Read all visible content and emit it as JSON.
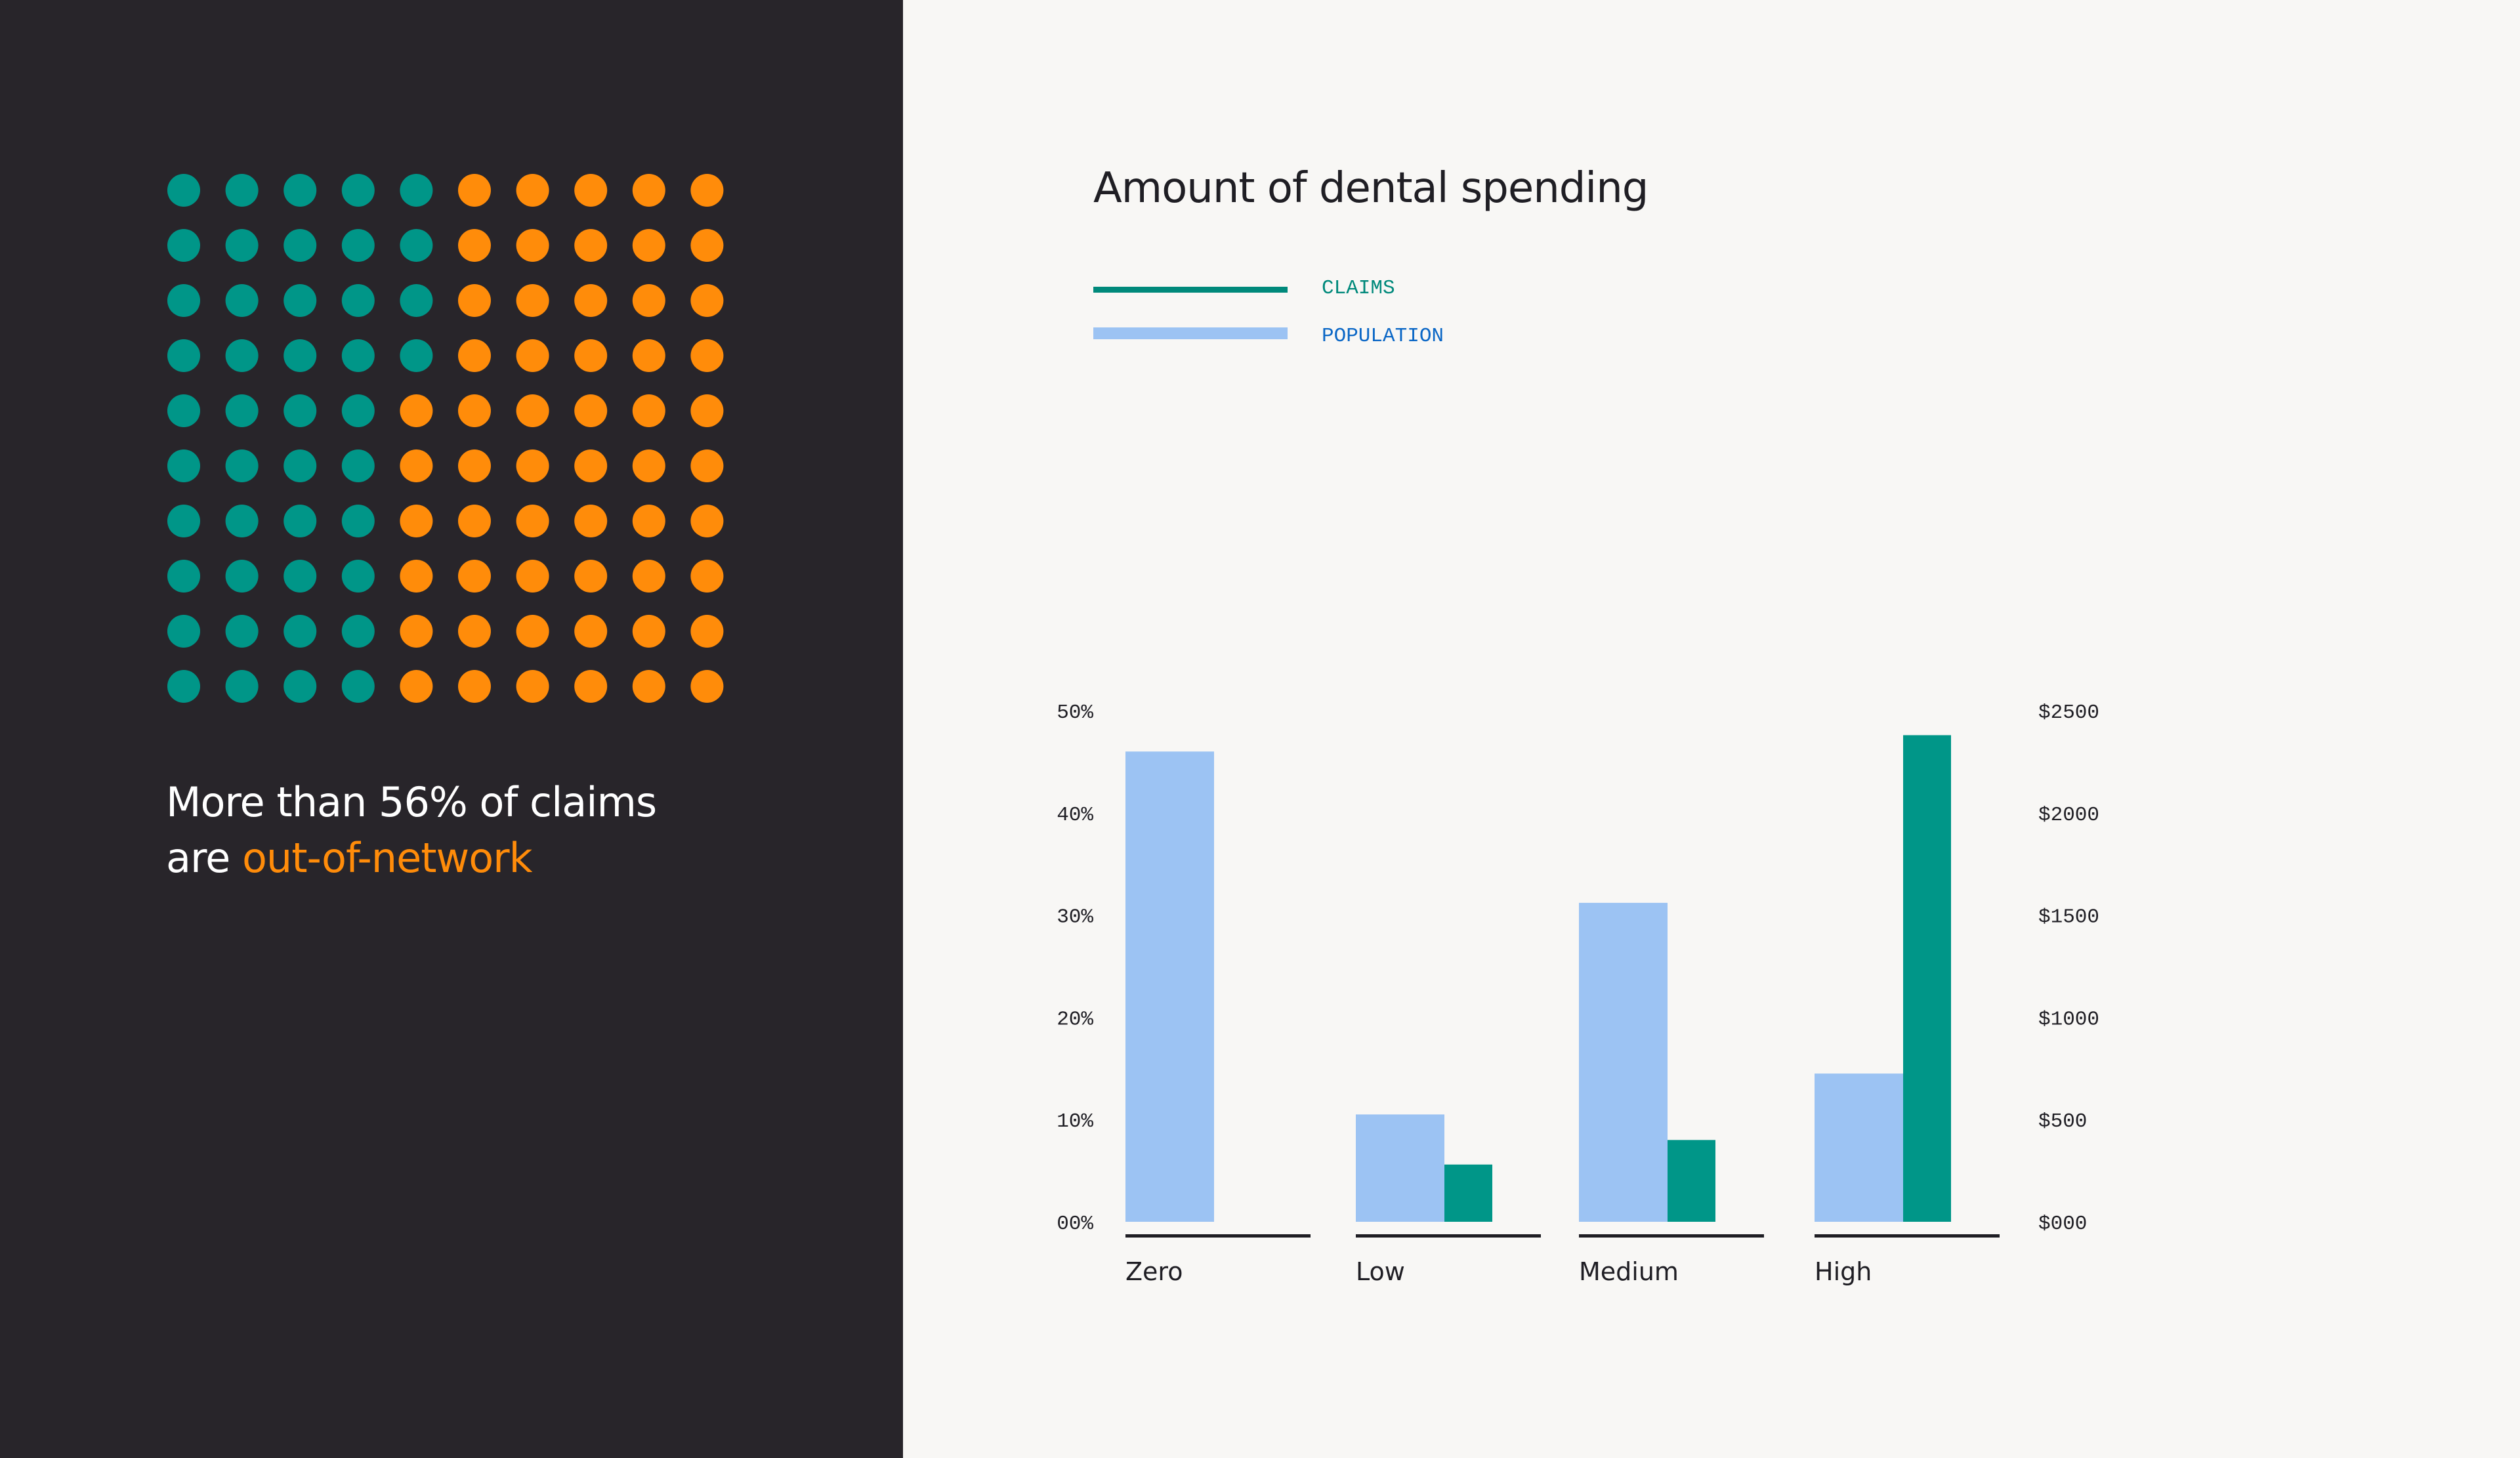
{
  "left_panel": {
    "headline_text": "More than 56% of claims",
    "headline_prefix": "are",
    "headline_highlight": "out-of-network",
    "dot_grid": {
      "rows": 10,
      "cols": 10,
      "colors": {
        "in_network": "#009688",
        "out_of_network": "#FF8C0A"
      },
      "teal_per_row": [
        5,
        5,
        5,
        5,
        4,
        4,
        4,
        4,
        4,
        4
      ]
    },
    "colors": {
      "background": "#28252A",
      "highlight": "#FF8C0A",
      "text": "#FFFFFF"
    }
  },
  "chart_data": {
    "type": "bar",
    "title": "Amount of dental spending",
    "categories": [
      "Zero",
      "Low",
      "Medium",
      "High"
    ],
    "series": [
      {
        "name": "CLAIMS",
        "axis": "right",
        "color": "#009688",
        "values": [
          0,
          280,
          400,
          2380
        ]
      },
      {
        "name": "POPULATION",
        "axis": "left",
        "color": "#9CC3F3",
        "values": [
          46,
          10.5,
          31.2,
          14.5
        ]
      }
    ],
    "left_axis": {
      "ylim": [
        0,
        50
      ],
      "ticks": [
        "00%",
        "10%",
        "20%",
        "30%",
        "40%",
        "50%"
      ]
    },
    "right_axis": {
      "ylim": [
        0,
        2500
      ],
      "ticks": [
        "$000",
        "$500",
        "$1000",
        "$1500",
        "$2000",
        "$2500"
      ]
    },
    "legend_position": "top-left",
    "grid": false
  },
  "legend": {
    "claims_label": "CLAIMS",
    "population_label": "POPULATION",
    "claims_color": "#00897B",
    "population_color": "#9CC3F3",
    "claims_text_color": "#00897B",
    "population_text_color": "#0B67C6"
  }
}
